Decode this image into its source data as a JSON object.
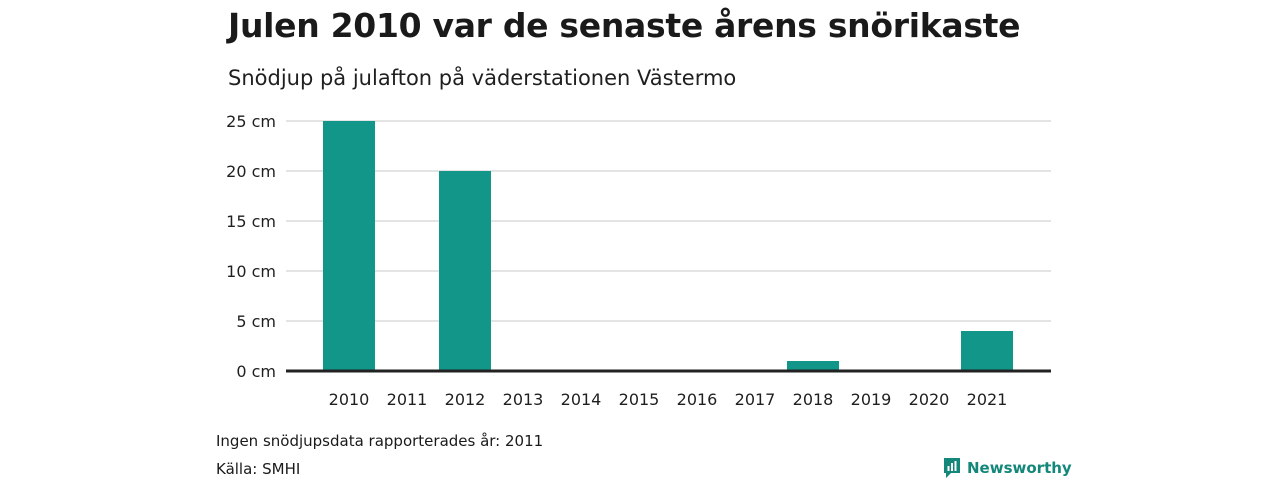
{
  "chart_data": {
    "type": "bar",
    "title": "Julen 2010 var de senaste årens snörikaste",
    "subtitle": "Snödjup på julafton på väderstationen Västermo",
    "categories": [
      "2010",
      "2011",
      "2012",
      "2013",
      "2014",
      "2015",
      "2016",
      "2017",
      "2018",
      "2019",
      "2020",
      "2021"
    ],
    "values": [
      25,
      null,
      20,
      0,
      0,
      0,
      0,
      0,
      1,
      0,
      0,
      4
    ],
    "ylim": [
      0,
      25
    ],
    "yticks": [
      0,
      5,
      10,
      15,
      20,
      25
    ],
    "ytick_labels": [
      "0 cm",
      "5 cm",
      "10 cm",
      "15 cm",
      "20 cm",
      "25 cm"
    ],
    "xlabel": "",
    "ylabel": "",
    "bar_color": "#13968a",
    "grid": true
  },
  "footnote": "Ingen snödjupsdata rapporterades år: 2011",
  "source": "Källa: SMHI",
  "brand": {
    "name": "Newsworthy",
    "icon": "bar-chart-icon",
    "color": "#13877a"
  }
}
